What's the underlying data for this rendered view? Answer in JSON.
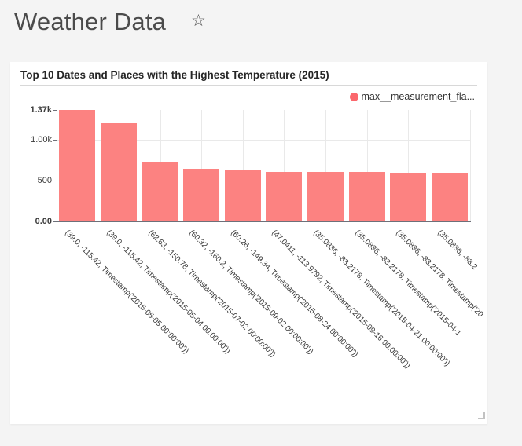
{
  "header": {
    "title": "Weather Data",
    "star_icon": "☆"
  },
  "card": {
    "legend": {
      "label": "max__measurement_fla...",
      "dot_color": "#fb676c"
    }
  },
  "chart_data": {
    "type": "bar",
    "title": "Top 10 Dates and Places with the Highest Temperature (2015)",
    "xlabel": "",
    "ylabel": "",
    "ylim": [
      0,
      1370
    ],
    "grid": true,
    "legend_position": "top-right",
    "bar_color": "#fc8281",
    "series": [
      {
        "name": "max__measurement_fla...",
        "values": [
          1370,
          1205,
          729,
          642,
          637,
          607,
          606,
          605,
          601,
          597
        ]
      }
    ],
    "categories": [
      "(39.0, -115.42, Timestamp('2015-05-05 00:00:00'))",
      "(39.0, -115.42, Timestamp('2015-05-04 00:00:00'))",
      "(62.63, -150.78, Timestamp('2015-07-02 00:00:00'))",
      "(60.32, -160.2, Timestamp('2015-09-02 00:00:00'))",
      "(60.26, -149.34, Timestamp('2015-08-24 00:00:00'))",
      "(47.0411, -113.9792, Timestamp('2015-09-16 00:00:00'))",
      "(35.0836, -83.2178, Timestamp('2015-04-21 00:00:00'))",
      "(35.0836, -83.2178, Timestamp('2015-04-1",
      "(35.0836, -83.2178, Timestamp('20",
      "(35.0836, -83.2"
    ],
    "yticks": [
      {
        "label": "1.37k",
        "value": 1370,
        "bold": true,
        "grid": false
      },
      {
        "label": "1.00k",
        "value": 1000,
        "bold": false,
        "grid": true
      },
      {
        "label": "500",
        "value": 500,
        "bold": false,
        "grid": true
      },
      {
        "label": "0.00",
        "value": 0,
        "bold": true,
        "grid": false
      }
    ]
  }
}
